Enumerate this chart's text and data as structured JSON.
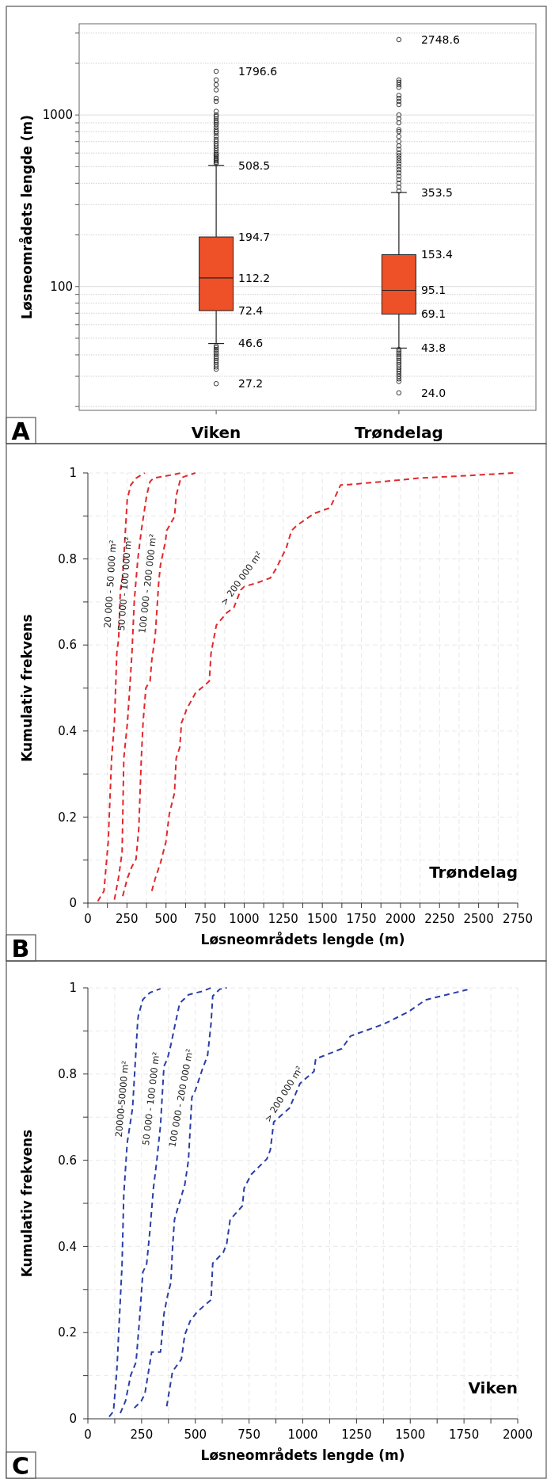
{
  "chart_data": [
    {
      "type": "box",
      "title": "A",
      "ylabel": "Løsneområdets lengde (m)",
      "categories": [
        "Viken",
        "Trøndelag"
      ],
      "color": "#ee5028",
      "log": true,
      "grid": true,
      "ylim": [
        19,
        3400
      ],
      "yticks": [
        {
          "value": 20,
          "label": null
        },
        {
          "value": 30,
          "label": null
        },
        {
          "value": 40,
          "label": null
        },
        {
          "value": 50,
          "label": null
        },
        {
          "value": 60,
          "label": null
        },
        {
          "value": 70,
          "label": null
        },
        {
          "value": 80,
          "label": null
        },
        {
          "value": 90,
          "label": null
        },
        100,
        {
          "value": 200,
          "label": null
        },
        {
          "value": 300,
          "label": null
        },
        {
          "value": 400,
          "label": null
        },
        {
          "value": 500,
          "label": null
        },
        {
          "value": 600,
          "label": null
        },
        {
          "value": 700,
          "label": null
        },
        {
          "value": 800,
          "label": null
        },
        {
          "value": 900,
          "label": null
        },
        1000,
        {
          "value": 2000,
          "label": null
        },
        {
          "value": 3000,
          "label": null
        }
      ],
      "boxes": [
        {
          "low": 46.6,
          "q1": 72.4,
          "median": 112.2,
          "q3": 194.7,
          "high": 508.5,
          "outliers": [
            27.2,
            33,
            34,
            35,
            36,
            37,
            38,
            39,
            40,
            41,
            42,
            43,
            44,
            45,
            520,
            530,
            540,
            550,
            560,
            570,
            580,
            590,
            600,
            620,
            640,
            660,
            680,
            700,
            720,
            750,
            780,
            800,
            820,
            850,
            880,
            900,
            920,
            950,
            980,
            1000,
            1050,
            1200,
            1250,
            1400,
            1500,
            1600,
            1796.6
          ]
        },
        {
          "low": 43.8,
          "q1": 69.1,
          "median": 95.1,
          "q3": 153.4,
          "high": 353.5,
          "outliers": [
            24.0,
            28,
            29,
            30,
            31,
            32,
            33,
            34,
            35,
            36,
            37,
            38,
            39,
            40,
            41,
            42,
            43,
            360,
            380,
            400,
            420,
            440,
            460,
            480,
            500,
            520,
            540,
            560,
            580,
            600,
            630,
            660,
            700,
            750,
            800,
            820,
            900,
            950,
            1000,
            1150,
            1200,
            1250,
            1300,
            1450,
            1500,
            1550,
            1600,
            2748.6
          ]
        }
      ],
      "annotations": [
        "1796.6",
        {
          "text": "508.5",
          "x": "Viken",
          "y": 508.5
        },
        {
          "text": "194.7",
          "x": "Viken",
          "y": 194.7
        },
        {
          "text": "112.2",
          "x": "Viken",
          "y": 112.2
        },
        {
          "text": "72.4",
          "x": "Viken",
          "y": 72.4
        },
        {
          "text": "46.6",
          "x": "Viken",
          "y": 46.6
        },
        "27.2",
        "2748.6",
        {
          "text": "353.5",
          "x": "Trøndelag",
          "y": 353.5
        },
        {
          "text": "153.4",
          "x": "Trøndelag",
          "y": 153.4
        },
        {
          "text": "95.1",
          "x": "Trøndelag",
          "y": 95.1
        },
        {
          "text": "69.1",
          "x": "Trøndelag",
          "y": 69.1
        },
        {
          "text": "43.8",
          "x": "Trøndelag",
          "y": 43.8
        },
        "24.0"
      ]
    },
    {
      "type": "line",
      "title": "B",
      "xlabel": "Løsneområdets lengde (m)",
      "ylabel": "Kumulativ frekvens",
      "annotations": [
        "Trøndelag"
      ],
      "grid": true,
      "line_style": "dashed",
      "xlim": [
        0,
        2750
      ],
      "ylim": [
        0,
        1
      ],
      "xticks": [
        0,
        {
          "value": 125,
          "label": null
        },
        250,
        {
          "value": 375,
          "label": null
        },
        500,
        {
          "value": 625,
          "label": null
        },
        750,
        {
          "value": 875,
          "label": null
        },
        1000,
        {
          "value": 1125,
          "label": null
        },
        1250,
        {
          "value": 1375,
          "label": null
        },
        1500,
        {
          "value": 1625,
          "label": null
        },
        1750,
        {
          "value": 1875,
          "label": null
        },
        2000,
        {
          "value": 2125,
          "label": null
        },
        2250,
        {
          "value": 2375,
          "label": null
        },
        2500,
        {
          "value": 2625,
          "label": null
        },
        2750
      ],
      "yticks": [
        0,
        {
          "value": 0.1,
          "label": null
        },
        0.2,
        {
          "value": 0.3,
          "label": null
        },
        0.4,
        {
          "value": 0.5,
          "label": null
        },
        0.6,
        {
          "value": 0.7,
          "label": null
        },
        0.8,
        {
          "value": 0.9,
          "label": null
        },
        1
      ],
      "series": [
        {
          "name": "20 000 - 50 000 m²",
          "color": "#e0282c",
          "x": [
            63,
            103,
            130,
            152,
            170,
            185,
            197,
            208,
            223,
            252,
            275,
            308,
            364
          ],
          "values": [
            0.004,
            0.028,
            0.142,
            0.337,
            0.419,
            0.581,
            0.614,
            0.728,
            0.76,
            0.939,
            0.972,
            0.988,
            1.0
          ]
        },
        {
          "name": "50 000 - 100 000 m²",
          "color": "#e0282c",
          "x": [
            170,
            197,
            219,
            230,
            253,
            268,
            282,
            297,
            320,
            342,
            376,
            398,
            420,
            487,
            543,
            599
          ],
          "values": [
            0.008,
            0.061,
            0.118,
            0.337,
            0.419,
            0.5,
            0.581,
            0.703,
            0.801,
            0.866,
            0.947,
            0.98,
            0.988,
            0.992,
            0.996,
            1.0
          ]
        },
        {
          "name": "100 000 - 200 000 m²",
          "color": "#e0282c",
          "x": [
            223,
            252,
            282,
            308,
            326,
            342,
            353,
            371,
            398,
            409,
            431,
            453,
            464,
            497,
            504,
            554,
            565,
            594,
            621,
            688
          ],
          "values": [
            0.016,
            0.057,
            0.085,
            0.102,
            0.175,
            0.337,
            0.419,
            0.5,
            0.516,
            0.565,
            0.622,
            0.744,
            0.785,
            0.842,
            0.866,
            0.898,
            0.947,
            0.988,
            0.992,
            1.0
          ]
        },
        {
          "name": "> 200 000 m²",
          "color": "#e0282c",
          "x": [
            409,
            431,
            465,
            499,
            521,
            554,
            565,
            588,
            599,
            617,
            632,
            688,
            777,
            788,
            822,
            889,
            934,
            978,
            1001,
            1079,
            1168,
            1202,
            1269,
            1303,
            1337,
            1449,
            1550,
            1617,
            1673,
            1896,
            2119,
            2342,
            2722
          ],
          "values": [
            0.028,
            0.057,
            0.094,
            0.142,
            0.207,
            0.256,
            0.337,
            0.362,
            0.419,
            0.435,
            0.451,
            0.488,
            0.516,
            0.581,
            0.646,
            0.675,
            0.687,
            0.728,
            0.736,
            0.744,
            0.756,
            0.776,
            0.825,
            0.866,
            0.878,
            0.906,
            0.919,
            0.972,
            0.973,
            0.98,
            0.988,
            0.992,
            1.0
          ]
        }
      ]
    },
    {
      "type": "line",
      "title": "C",
      "xlabel": "Løsneområdets lengde (m)",
      "ylabel": "Kumulativ frekvens",
      "annotations": [
        "Viken"
      ],
      "grid": true,
      "line_style": "dashed",
      "xlim": [
        0,
        2000
      ],
      "ylim": [
        0,
        1
      ],
      "xticks": [
        0,
        {
          "value": 125,
          "label": null
        },
        250,
        {
          "value": 375,
          "label": null
        },
        500,
        {
          "value": 625,
          "label": null
        },
        750,
        {
          "value": 875,
          "label": null
        },
        1000,
        {
          "value": 1125,
          "label": null
        },
        1250,
        {
          "value": 1375,
          "label": null
        },
        1500,
        {
          "value": 1625,
          "label": null
        },
        1750,
        {
          "value": 1875,
          "label": null
        },
        2000
      ],
      "yticks": [
        0,
        {
          "value": 0.1,
          "label": null
        },
        0.2,
        {
          "value": 0.3,
          "label": null
        },
        0.4,
        {
          "value": 0.5,
          "label": null
        },
        0.6,
        {
          "value": 0.7,
          "label": null
        },
        0.8,
        {
          "value": 0.9,
          "label": null
        },
        1
      ],
      "series": [
        {
          "name": "20000-50000 m²",
          "color": "#2a3ea6",
          "x": [
            99,
            119,
            135,
            151,
            159,
            167,
            183,
            208,
            232,
            235,
            256,
            289,
            338
          ],
          "values": [
            0.005,
            0.017,
            0.114,
            0.276,
            0.357,
            0.519,
            0.64,
            0.721,
            0.924,
            0.936,
            0.973,
            0.989,
            0.998
          ]
        },
        {
          "name": "50 000 - 100 000 m²",
          "color": "#2a3ea6",
          "x": [
            151,
            175,
            200,
            224,
            240,
            256,
            273,
            289,
            305,
            321,
            338,
            354,
            370,
            386,
            403,
            427,
            468,
            532,
            573
          ],
          "values": [
            0.013,
            0.041,
            0.102,
            0.131,
            0.228,
            0.341,
            0.357,
            0.438,
            0.535,
            0.6,
            0.681,
            0.818,
            0.835,
            0.867,
            0.908,
            0.964,
            0.984,
            0.992,
            1.0
          ]
        },
        {
          "name": "100 000 - 200 000 m²",
          "color": "#2a3ea6",
          "x": [
            216,
            248,
            265,
            297,
            338,
            354,
            370,
            386,
            394,
            403,
            419,
            451,
            468,
            484,
            500,
            532,
            557,
            573,
            581,
            614,
            646
          ],
          "values": [
            0.025,
            0.041,
            0.057,
            0.155,
            0.155,
            0.243,
            0.284,
            0.316,
            0.397,
            0.462,
            0.49,
            0.543,
            0.6,
            0.746,
            0.762,
            0.81,
            0.843,
            0.916,
            0.981,
            0.997,
            1.0
          ]
        },
        {
          "name": "> 200 000 m²",
          "color": "#2a3ea6",
          "x": [
            367,
            394,
            435,
            451,
            476,
            508,
            573,
            581,
            630,
            646,
            662,
            719,
            727,
            760,
            833,
            849,
            865,
            938,
            987,
            1052,
            1060,
            1182,
            1222,
            1377,
            1490,
            1571,
            1669,
            1766
          ],
          "values": [
            0.029,
            0.11,
            0.138,
            0.195,
            0.227,
            0.248,
            0.276,
            0.361,
            0.386,
            0.406,
            0.462,
            0.494,
            0.535,
            0.567,
            0.603,
            0.624,
            0.689,
            0.721,
            0.778,
            0.806,
            0.835,
            0.859,
            0.888,
            0.916,
            0.944,
            0.972,
            0.984,
            0.996
          ]
        }
      ]
    }
  ]
}
